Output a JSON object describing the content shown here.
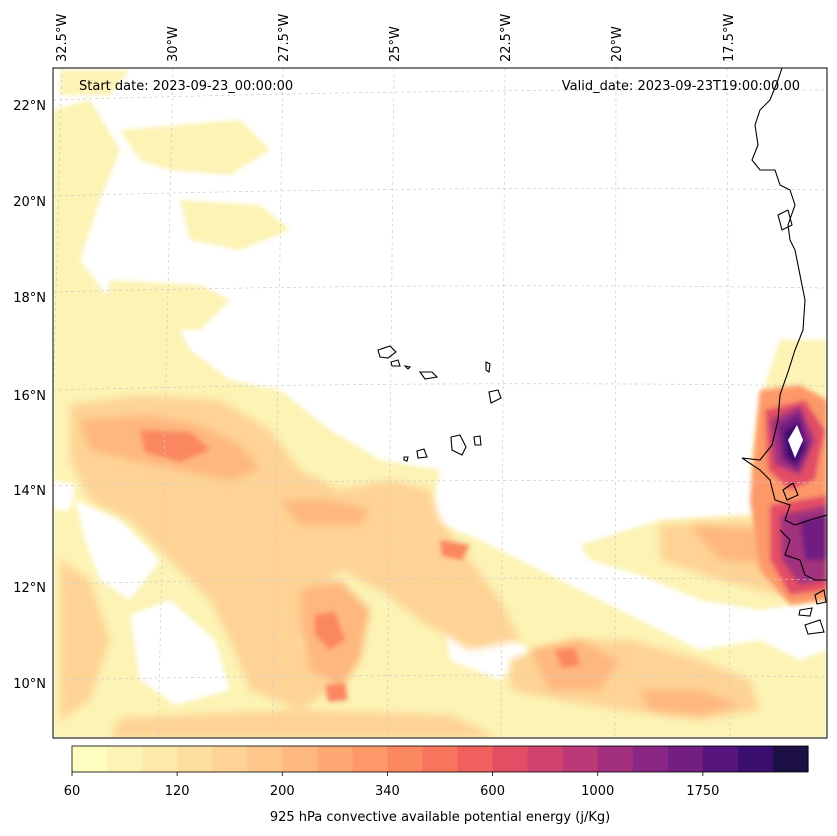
{
  "header": {
    "start_date": "Start date: 2023-09-23_00:00:00",
    "valid_date": "Valid_date: 2023-09-23T19:00:00.00"
  },
  "map": {
    "projection": "Lambert conformal",
    "lon_labels": [
      "32.5°W",
      "30°W",
      "27.5°W",
      "25°W",
      "22.5°W",
      "20°W",
      "17.5°W"
    ],
    "lat_labels": [
      "22°N",
      "20°N",
      "18°N",
      "16°N",
      "14°N",
      "12°N",
      "10°N"
    ],
    "gridlines": true
  },
  "colorbar": {
    "label": "925 hPa convective available potential energy (j/Kg)",
    "tick_labels": [
      "60",
      "120",
      "200",
      "340",
      "600",
      "1000",
      "1750"
    ],
    "colors": [
      "#fcfdbf",
      "#fcf3b4",
      "#fde9a9",
      "#fddf9f",
      "#fed395",
      "#fec68a",
      "#feb77e",
      "#fea973",
      "#fd9969",
      "#fb8761",
      "#f7755c",
      "#f1605d",
      "#e34e65",
      "#d2426f",
      "#bc3978",
      "#a3307e",
      "#8a2785",
      "#721f81",
      "#57157e",
      "#3b0f70",
      "#1c1044"
    ]
  },
  "chart_data": {
    "type": "heatmap",
    "variable": "925 hPa convective available potential energy (j/Kg)",
    "levels": [
      60,
      120,
      200,
      340,
      600,
      1000,
      1750
    ]
  }
}
